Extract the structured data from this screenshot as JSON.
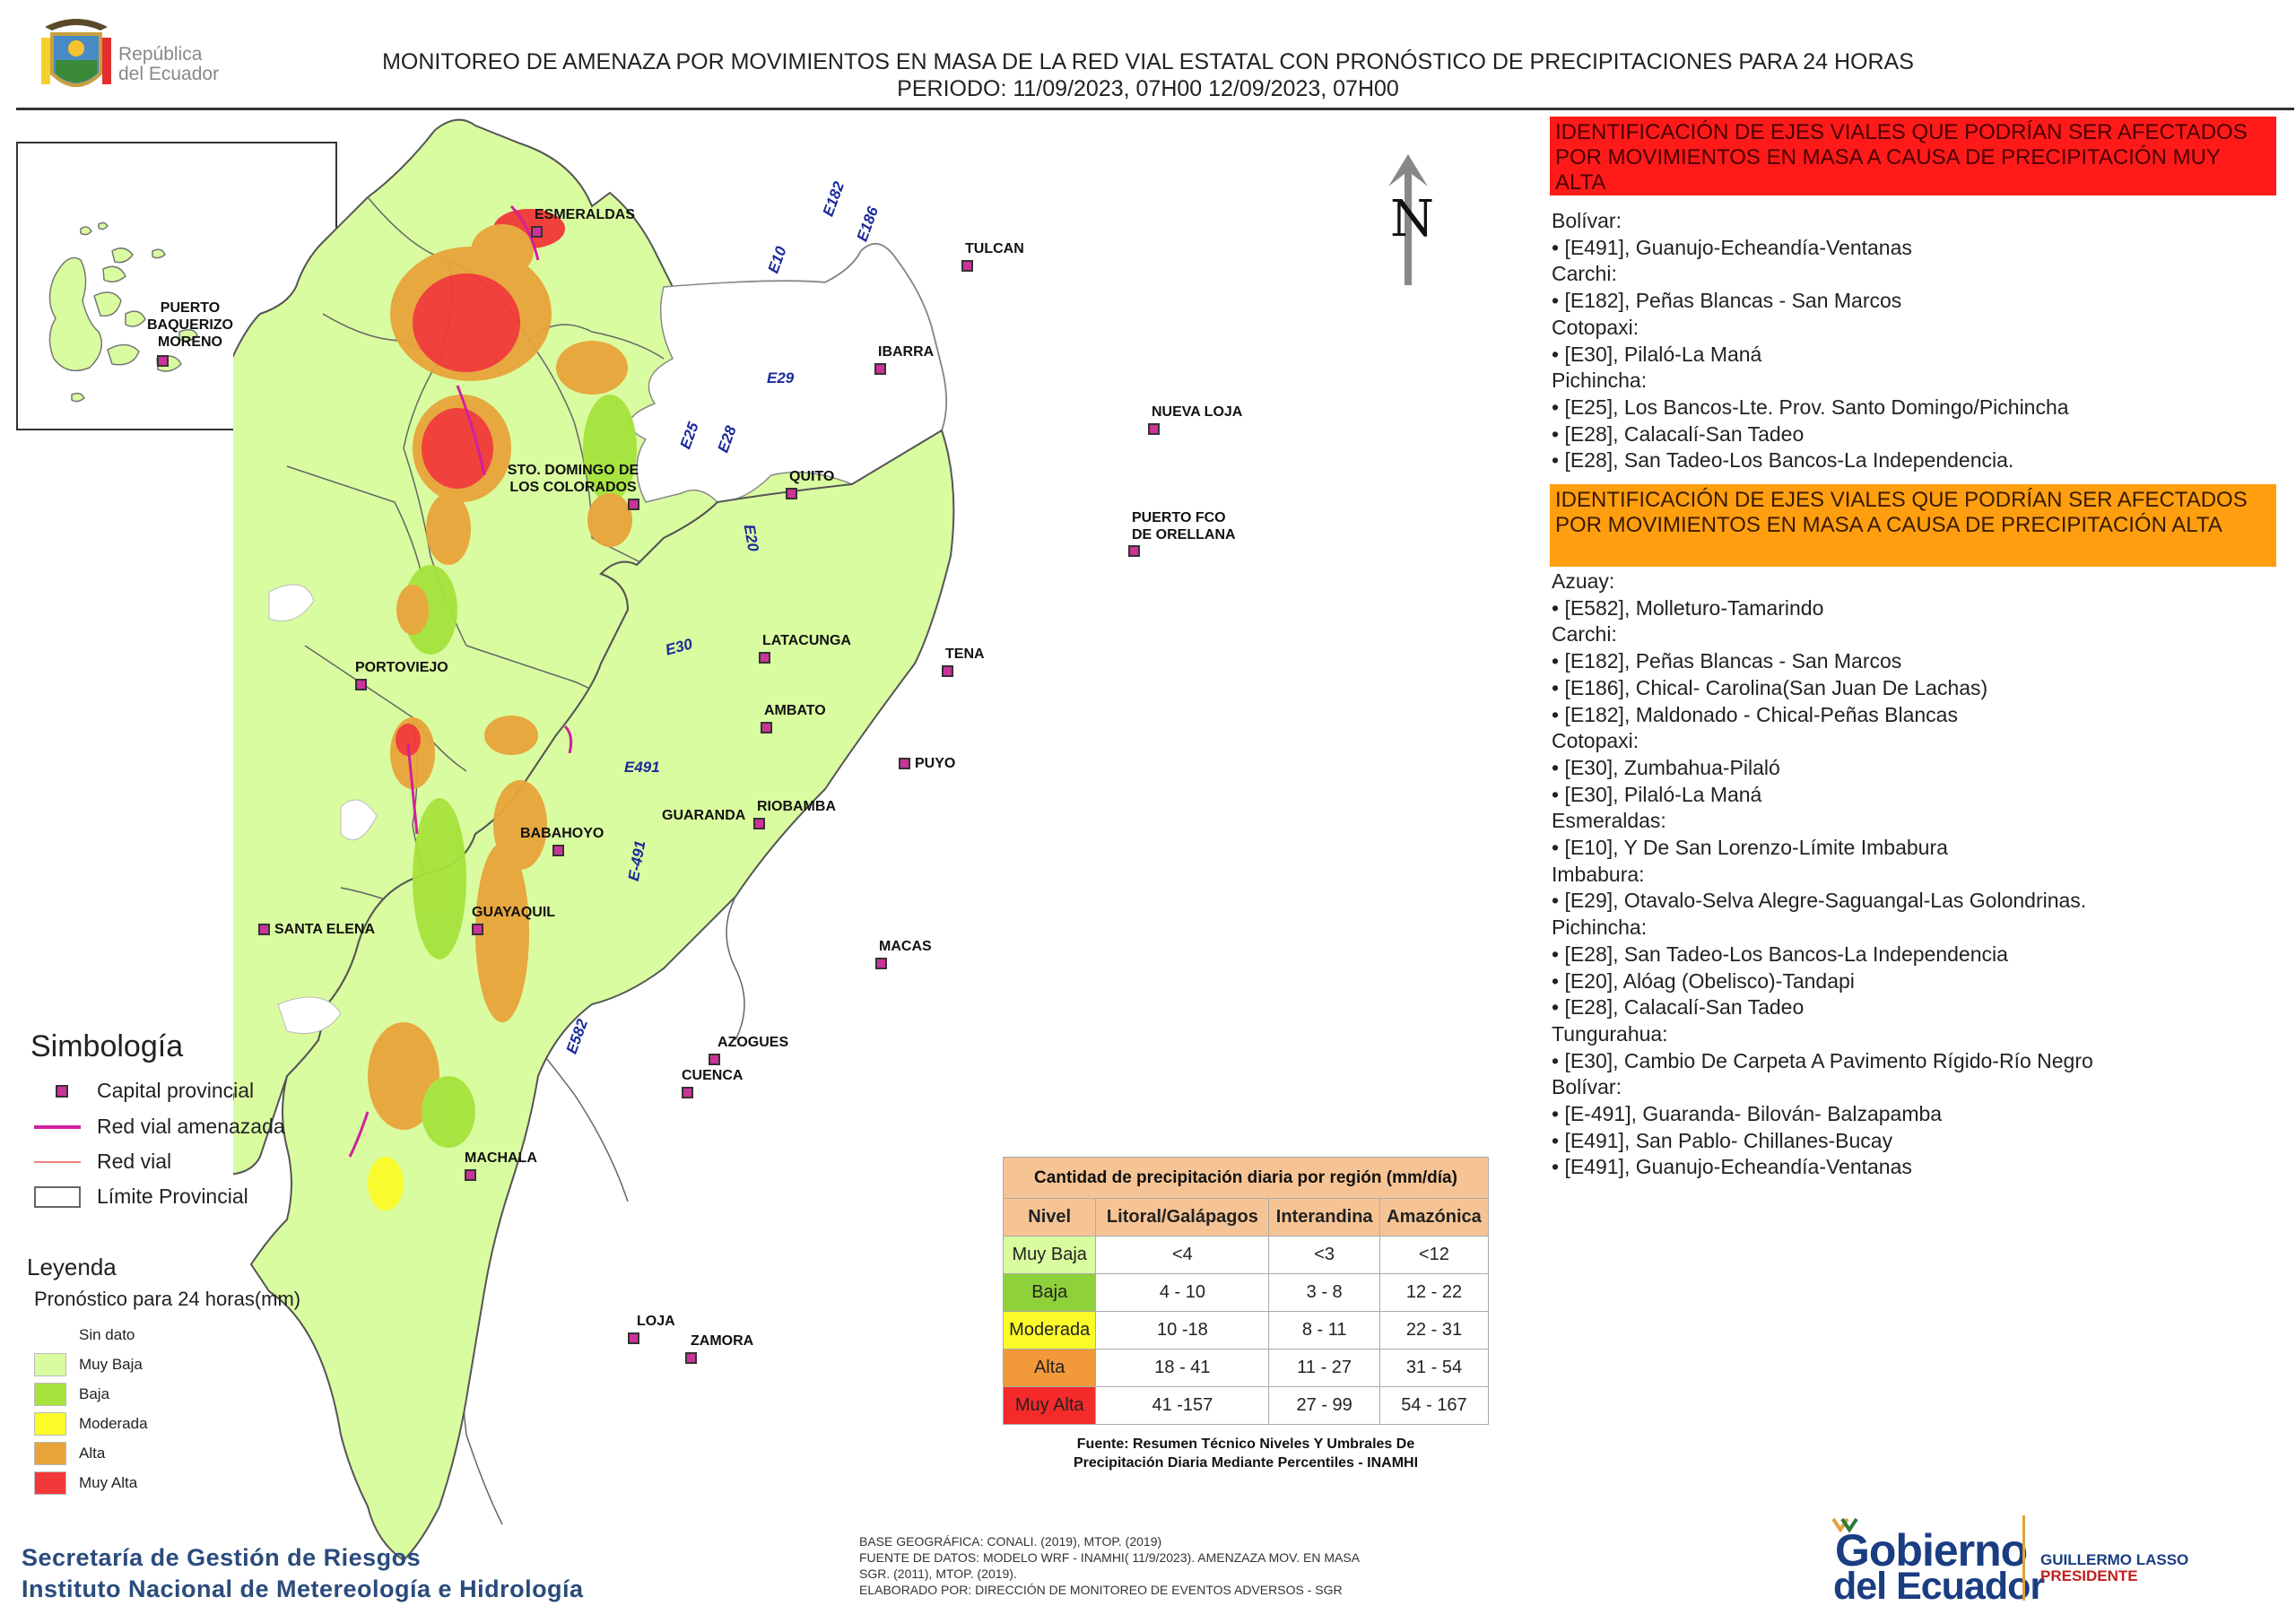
{
  "header": {
    "logo_text_line1": "República",
    "logo_text_line2": "del Ecuador",
    "title_line1": "MONITOREO DE AMENAZA POR MOVIMIENTOS EN MASA DE LA RED VIAL  ESTATAL  CON PRONÓSTICO  DE  PRECIPITACIONES PARA 24 HORAS",
    "title_line2": "PERIODO: 11/09/2023, 07H00 12/09/2023, 07H00"
  },
  "inset": {
    "city": "PUERTO BAQUERIZO MORENO",
    "city_line1": "PUERTO",
    "city_line2": "BAQUERIZO",
    "city_line3": "MORENO"
  },
  "north_label": "N",
  "cities": {
    "esmeraldas": "ESMERALDAS",
    "tulcan": "TULCAN",
    "ibarra": "IBARRA",
    "nueva_loja": "NUEVA LOJA",
    "sto_domingo_l1": "STO. DOMINGO DE",
    "sto_domingo_l2": "LOS COLORADOS",
    "quito": "QUITO",
    "orellana_l1": "PUERTO FCO",
    "orellana_l2": "DE ORELLANA",
    "portoviejo": "PORTOVIEJO",
    "latacunga": "LATACUNGA",
    "tena": "TENA",
    "ambato": "AMBATO",
    "puyo": "PUYO",
    "guaranda": "GUARANDA",
    "riobamba": "RIOBAMBA",
    "babahoyo": "BABAHOYO",
    "guayaquil": "GUAYAQUIL",
    "santa_elena": "SANTA ELENA",
    "macas": "MACAS",
    "azogues": "AZOGUES",
    "cuenca": "CUENCA",
    "machala": "MACHALA",
    "loja": "LOJA",
    "zamora": "ZAMORA"
  },
  "road_labels": {
    "e182": "E182",
    "e186": "E186",
    "e10": "E10",
    "e29": "E29",
    "e25": "E25",
    "e28": "E28",
    "e20": "E20",
    "e30": "E30",
    "e491": "E491",
    "e491b": "E-491",
    "e582": "E582"
  },
  "muy_alta_panel": {
    "heading": "IDENTIFICACIÓN DE EJES VIALES QUE PODRÍAN SER AFECTADOS POR MOVIMIENTOS EN MASA A CAUSA DE PRECIPITACIÓN MUY ALTA",
    "lines": [
      "Bolívar:",
      "• [E491], Guanujo-Echeandía-Ventanas",
      "Carchi:",
      "• [E182], Peñas Blancas - San Marcos",
      "Cotopaxi:",
      "• [E30], Pilaló-La Maná",
      "Pichincha:",
      "• [E25], Los Bancos-Lte. Prov. Santo Domingo/Pichincha",
      "• [E28], Calacalí-San Tadeo",
      "• [E28], San Tadeo-Los Bancos-La Independencia."
    ]
  },
  "alta_panel": {
    "heading": "IDENTIFICACIÓN DE EJES VIALES QUE PODRÍAN SER AFECTADOS POR MOVIMIENTOS EN MASA A CAUSA DE PRECIPITACIÓN  ALTA",
    "lines": [
      "Azuay:",
      "• [E582], Molleturo-Tamarindo",
      "Carchi:",
      "• [E182], Peñas Blancas - San Marcos",
      "• [E186], Chical- Carolina(San Juan De Lachas)",
      "• [E182], Maldonado - Chical-Peñas Blancas",
      "Cotopaxi:",
      "• [E30], Zumbahua-Pilaló",
      "• [E30], Pilaló-La Maná",
      "Esmeraldas:",
      "• [E10], Y De San Lorenzo-Límite Imbabura",
      "Imbabura:",
      "• [E29], Otavalo-Selva Alegre-Saguangal-Las Golondrinas.",
      "Pichincha:",
      "• [E28], San Tadeo-Los Bancos-La Independencia",
      "• [E20], Alóag (Obelisco)-Tandapi",
      "• [E28], Calacalí-San Tadeo",
      "Tungurahua:",
      "• [E30], Cambio De Carpeta A Pavimento Rígido-Río Negro",
      "Bolívar:",
      "• [E-491], Guaranda- Bilován- Balzapamba",
      "• [E491], San Pablo- Chillanes-Bucay",
      "• [E491], Guanujo-Echeandía-Ventanas"
    ]
  },
  "simbologia": {
    "title": "Simbología",
    "capital": "Capital provincial",
    "red_amenazada": "Red vial amenazada",
    "red_vial": "Red vial",
    "limite": "Límite Provincial"
  },
  "leyenda": {
    "title": "Leyenda",
    "subtitle": "Pronóstico para 24 horas(mm)",
    "items": [
      {
        "label": "Sin dato",
        "color": "#ffffff"
      },
      {
        "label": "Muy Baja",
        "color": "#d9fca0"
      },
      {
        "label": "Baja",
        "color": "#a6e33c"
      },
      {
        "label": "Moderada",
        "color": "#fbfb2a"
      },
      {
        "label": "Alta",
        "color": "#e8a43a"
      },
      {
        "label": "Muy Alta",
        "color": "#f23838"
      }
    ]
  },
  "precip_table": {
    "caption": "Cantidad de precipitación diaria por región (mm/día)",
    "headers": [
      "Nivel",
      "Litoral/Galápagos",
      "Interandina",
      "Amazónica"
    ],
    "rows": [
      {
        "nivel": "Muy Baja",
        "color": "#d9fca0",
        "litoral": "<4",
        "interandina": "<3",
        "amazonica": "<12"
      },
      {
        "nivel": "Baja",
        "color": "#8fd13a",
        "litoral": "4 - 10",
        "interandina": "3 - 8",
        "amazonica": "12 - 22"
      },
      {
        "nivel": "Moderada",
        "color": "#fbfb2a",
        "litoral": "10 -18",
        "interandina": "8 - 11",
        "amazonica": "22 - 31"
      },
      {
        "nivel": "Alta",
        "color": "#f29a3a",
        "litoral": "18 - 41",
        "interandina": "11 - 27",
        "amazonica": "31 - 54"
      },
      {
        "nivel": "Muy Alta",
        "color": "#f52a2a",
        "litoral": "41 -157",
        "interandina": "27 - 99",
        "amazonica": "54 - 167"
      }
    ],
    "source_line1": "Fuente: Resumen Técnico Niveles Y Umbrales De",
    "source_line2": "Precipitación Diaria Mediante Percentiles - INAMHI"
  },
  "footer": {
    "org1": "Secretaría de Gestión de Riesgos",
    "org2": "Instituto Nacional de Metereología e Hidrología",
    "credit1": "BASE GEOGRÁFICA: CONALI. (2019), MTOP. (2019)",
    "credit2": "FUENTE DE DATOS: MODELO WRF - INAMHI( 11/9/2023).  AMENZAZA MOV. EN MASA",
    "credit3": "SGR. (2011), MTOP. (2019).",
    "credit4": "ELABORADO POR: DIRECCIÓN DE MONITOREO DE EVENTOS ADVERSOS - SGR",
    "gob1": "Gobierno",
    "gob2": "del Ecuador",
    "pres1": "GUILLERMO LASSO",
    "pres2": "PRESIDENTE"
  }
}
